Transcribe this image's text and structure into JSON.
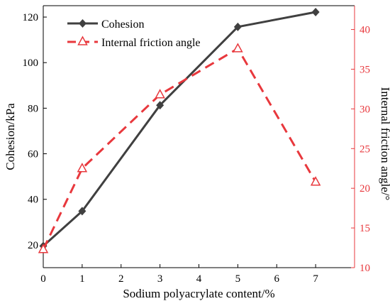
{
  "chart_data": {
    "type": "line",
    "x": [
      0,
      1,
      3,
      5,
      7
    ],
    "xlabel": "Sodium polyacrylate content/%",
    "xlim": [
      0,
      8
    ],
    "xticks": [
      "0",
      "1",
      "2",
      "3",
      "4",
      "5",
      "6",
      "7"
    ],
    "y_left": {
      "label": "Cohesion/kPa",
      "lim": [
        10,
        125
      ],
      "ticks": [
        "20",
        "40",
        "60",
        "80",
        "100",
        "120"
      ]
    },
    "y_right": {
      "label": "Internal friction angle/°",
      "lim": [
        10,
        43
      ],
      "ticks": [
        "10",
        "15",
        "20",
        "25",
        "30",
        "35",
        "40"
      ]
    },
    "series": [
      {
        "name": "Cohesion",
        "axis": "left",
        "values": [
          19.5,
          34.8,
          81.3,
          115.7,
          122.2
        ],
        "color": "#404040",
        "line_style": "solid",
        "marker": "filled-diamond"
      },
      {
        "name": "Internal friction angle",
        "axis": "right",
        "values": [
          12.3,
          22.5,
          31.8,
          37.6,
          20.8
        ],
        "color": "#e8383d",
        "line_style": "dashed",
        "marker": "open-triangle"
      }
    ],
    "legend": "top-left",
    "grid": false
  }
}
